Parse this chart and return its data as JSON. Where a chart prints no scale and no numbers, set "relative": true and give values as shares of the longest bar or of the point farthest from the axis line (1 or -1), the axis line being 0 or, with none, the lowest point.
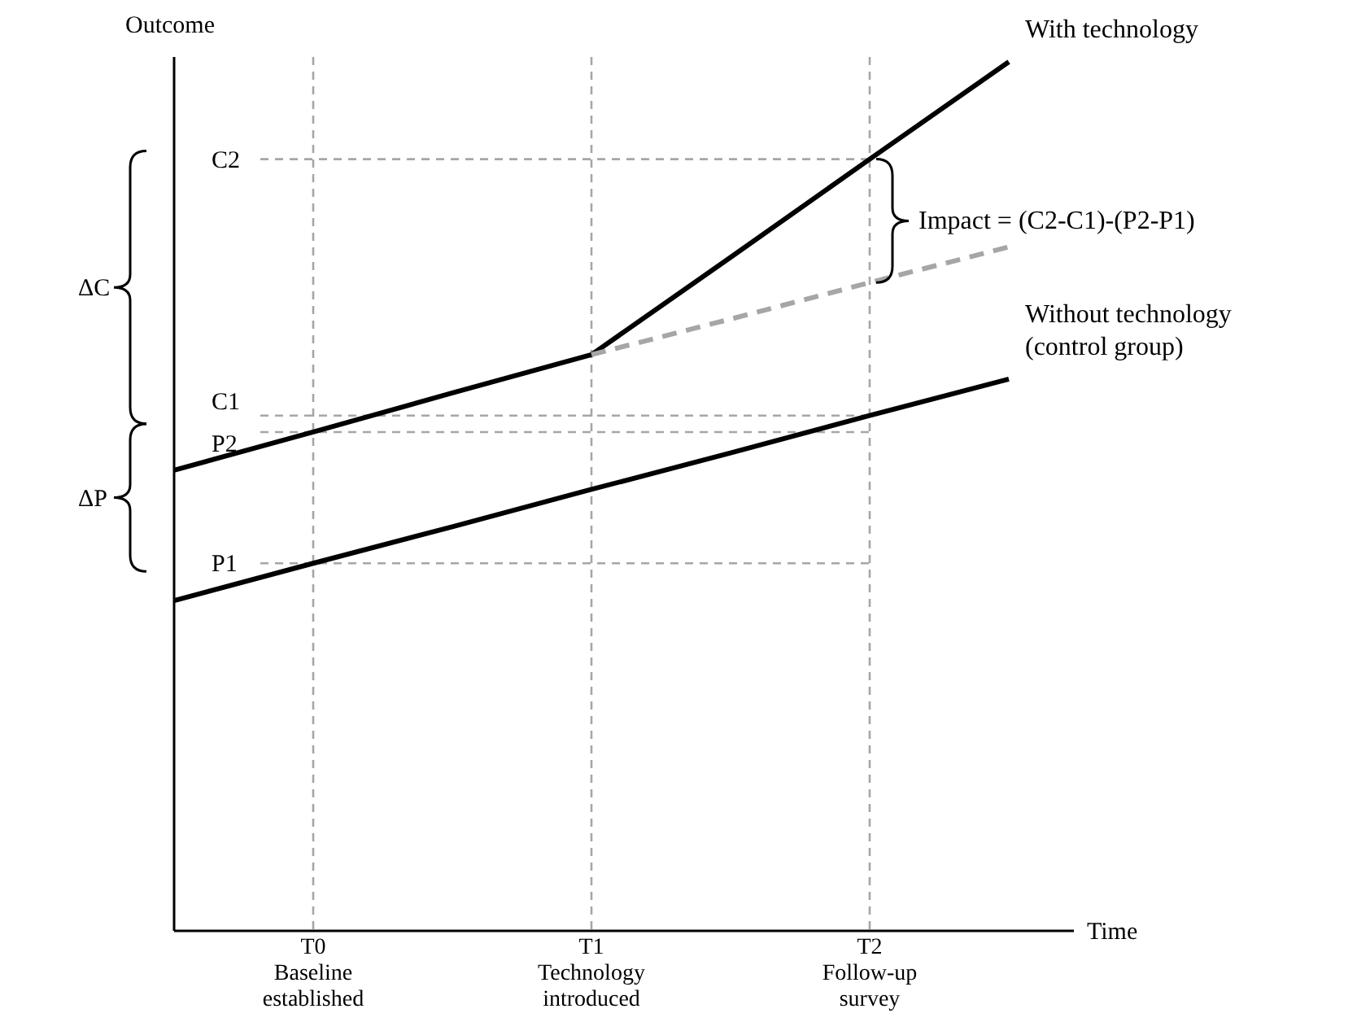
{
  "chart_data": {
    "type": "line",
    "relative": true,
    "xlabel": "Time",
    "ylabel": "Outcome",
    "categories": [
      null,
      "T0\nBaseline\nestablished",
      null,
      "T1\nTechnology\nintroduced",
      null,
      "T2\nFollow-up\nsurvey",
      null
    ],
    "grid": "x",
    "legend": false,
    "marker": "none",
    "series": [
      {
        "name": "With technology",
        "color": "#000000",
        "values": [
          0.53,
          0.574,
          0.619,
          0.663,
          0.775,
          0.888,
          1
        ]
      },
      {
        "name": "Without technology (control group)",
        "color": "#000000",
        "values": [
          0.38,
          0.423,
          0.465,
          0.508,
          0.55,
          0.593,
          0.635
        ]
      },
      {
        "color": "#a6a6a6",
        "line_style": "dashed",
        "values": [
          null,
          null,
          null,
          0.663,
          0.704,
          0.746,
          0.787
        ]
      }
    ],
    "ref_lines": [
      {
        "axis": "y",
        "value": 0.888,
        "label": "C2"
      },
      {
        "axis": "y",
        "value": 0.593,
        "label": "C1"
      },
      {
        "axis": "y",
        "value": 0.574,
        "label": "P2"
      },
      {
        "axis": "y",
        "value": 0.423,
        "label": "P1"
      }
    ],
    "annotations": [
      "ΔC",
      "ΔP",
      "Impact = (C2-C1)-(P2-P1)"
    ]
  }
}
